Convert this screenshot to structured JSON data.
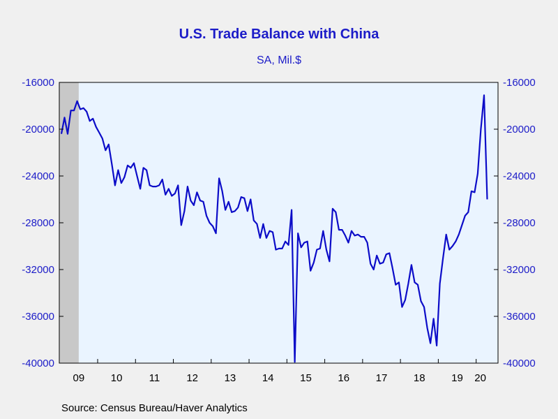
{
  "colors": {
    "background": "#f0f0f0",
    "plot_background": "#eaf4ff",
    "recession_shade": "#c8c8c8",
    "line": "#0c0cc8",
    "text_accent": "#1c1cc8"
  },
  "chart_data": {
    "type": "line",
    "title": "U.S. Trade Balance with China",
    "subtitle": "SA, Mil.$",
    "source": "Source:  Census Bureau/Haver Analytics",
    "ylim": [
      -40000,
      -16000
    ],
    "yticks": [
      -16000,
      -20000,
      -24000,
      -28000,
      -32000,
      -36000,
      -40000
    ],
    "ytick_labels": [
      "-16000",
      "-20000",
      "-24000",
      "-28000",
      "-32000",
      "-36000",
      "-40000"
    ],
    "x_start_year": 2009,
    "x_start_month": 1,
    "x_end_year": 2020,
    "x_end_month": 5,
    "xtick_labels": [
      "09",
      "10",
      "11",
      "12",
      "13",
      "14",
      "15",
      "16",
      "17",
      "18",
      "19",
      "20"
    ],
    "recession_shade": {
      "from": "2009-01",
      "to": "2009-06"
    },
    "grid": false,
    "legend": "none",
    "series": [
      {
        "values": [
          -20400,
          -19000,
          -20400,
          -18400,
          -18400,
          -17600,
          -18300,
          -18200,
          -18500,
          -19300,
          -19100,
          -19800,
          -20300,
          -20800,
          -21800,
          -21300,
          -23000,
          -24800,
          -23500,
          -24600,
          -24100,
          -23100,
          -23300,
          -22900,
          -24000,
          -25100,
          -23300,
          -23500,
          -24800,
          -24900,
          -24900,
          -24800,
          -24300,
          -25600,
          -25100,
          -25700,
          -25500,
          -24800,
          -28200,
          -27000,
          -24900,
          -26100,
          -26500,
          -25400,
          -26100,
          -26200,
          -27400,
          -28000,
          -28300,
          -28900,
          -24200,
          -25300,
          -26900,
          -26200,
          -27100,
          -27000,
          -26700,
          -25800,
          -25900,
          -27000,
          -26000,
          -27800,
          -28100,
          -29300,
          -28100,
          -29300,
          -28700,
          -28800,
          -30300,
          -30200,
          -30200,
          -29600,
          -29900,
          -26900,
          -39900,
          -28900,
          -30100,
          -29700,
          -29600,
          -32100,
          -31400,
          -30300,
          -30200,
          -28700,
          -30300,
          -31300,
          -26800,
          -27100,
          -28600,
          -28600,
          -29100,
          -29700,
          -28700,
          -29100,
          -29000,
          -29200,
          -29200,
          -29700,
          -31500,
          -32000,
          -30800,
          -31500,
          -31400,
          -30700,
          -30600,
          -31900,
          -33300,
          -33100,
          -35200,
          -34600,
          -33200,
          -31600,
          -33100,
          -33300,
          -34700,
          -35200,
          -37000,
          -38300,
          -36200,
          -38500,
          -33200,
          -31000,
          -29000,
          -30300,
          -30000,
          -29600,
          -29000,
          -28200,
          -27400,
          -27100,
          -25300,
          -25400,
          -23800,
          -20000,
          -17100,
          -26000
        ]
      }
    ]
  }
}
